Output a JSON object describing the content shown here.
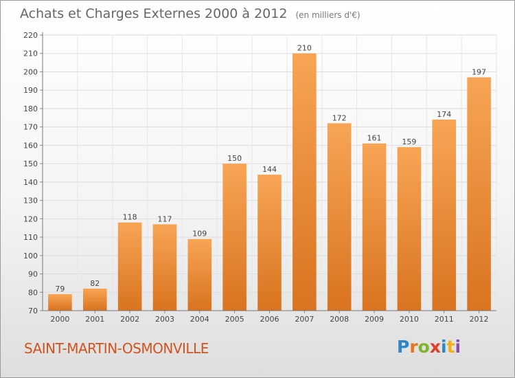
{
  "chart_data": {
    "type": "bar",
    "title": "Achats et Charges Externes 2000 à 2012",
    "subtitle": "(en milliers d'€)",
    "categories": [
      "2000",
      "2001",
      "2002",
      "2003",
      "2004",
      "2005",
      "2006",
      "2007",
      "2008",
      "2009",
      "2010",
      "2011",
      "2012"
    ],
    "values": [
      79,
      82,
      118,
      117,
      109,
      150,
      144,
      210,
      172,
      161,
      159,
      174,
      197
    ],
    "ylim": [
      70,
      220
    ],
    "yticks": [
      70,
      80,
      90,
      100,
      110,
      120,
      130,
      140,
      150,
      160,
      170,
      180,
      190,
      200,
      210,
      220
    ],
    "grid": true,
    "bar_color": "#f09a45"
  },
  "footer": {
    "place": "SAINT-MARTIN-OSMONVILLE",
    "logo": [
      "P",
      "r",
      "o",
      "x",
      "i",
      "t",
      "i"
    ]
  }
}
